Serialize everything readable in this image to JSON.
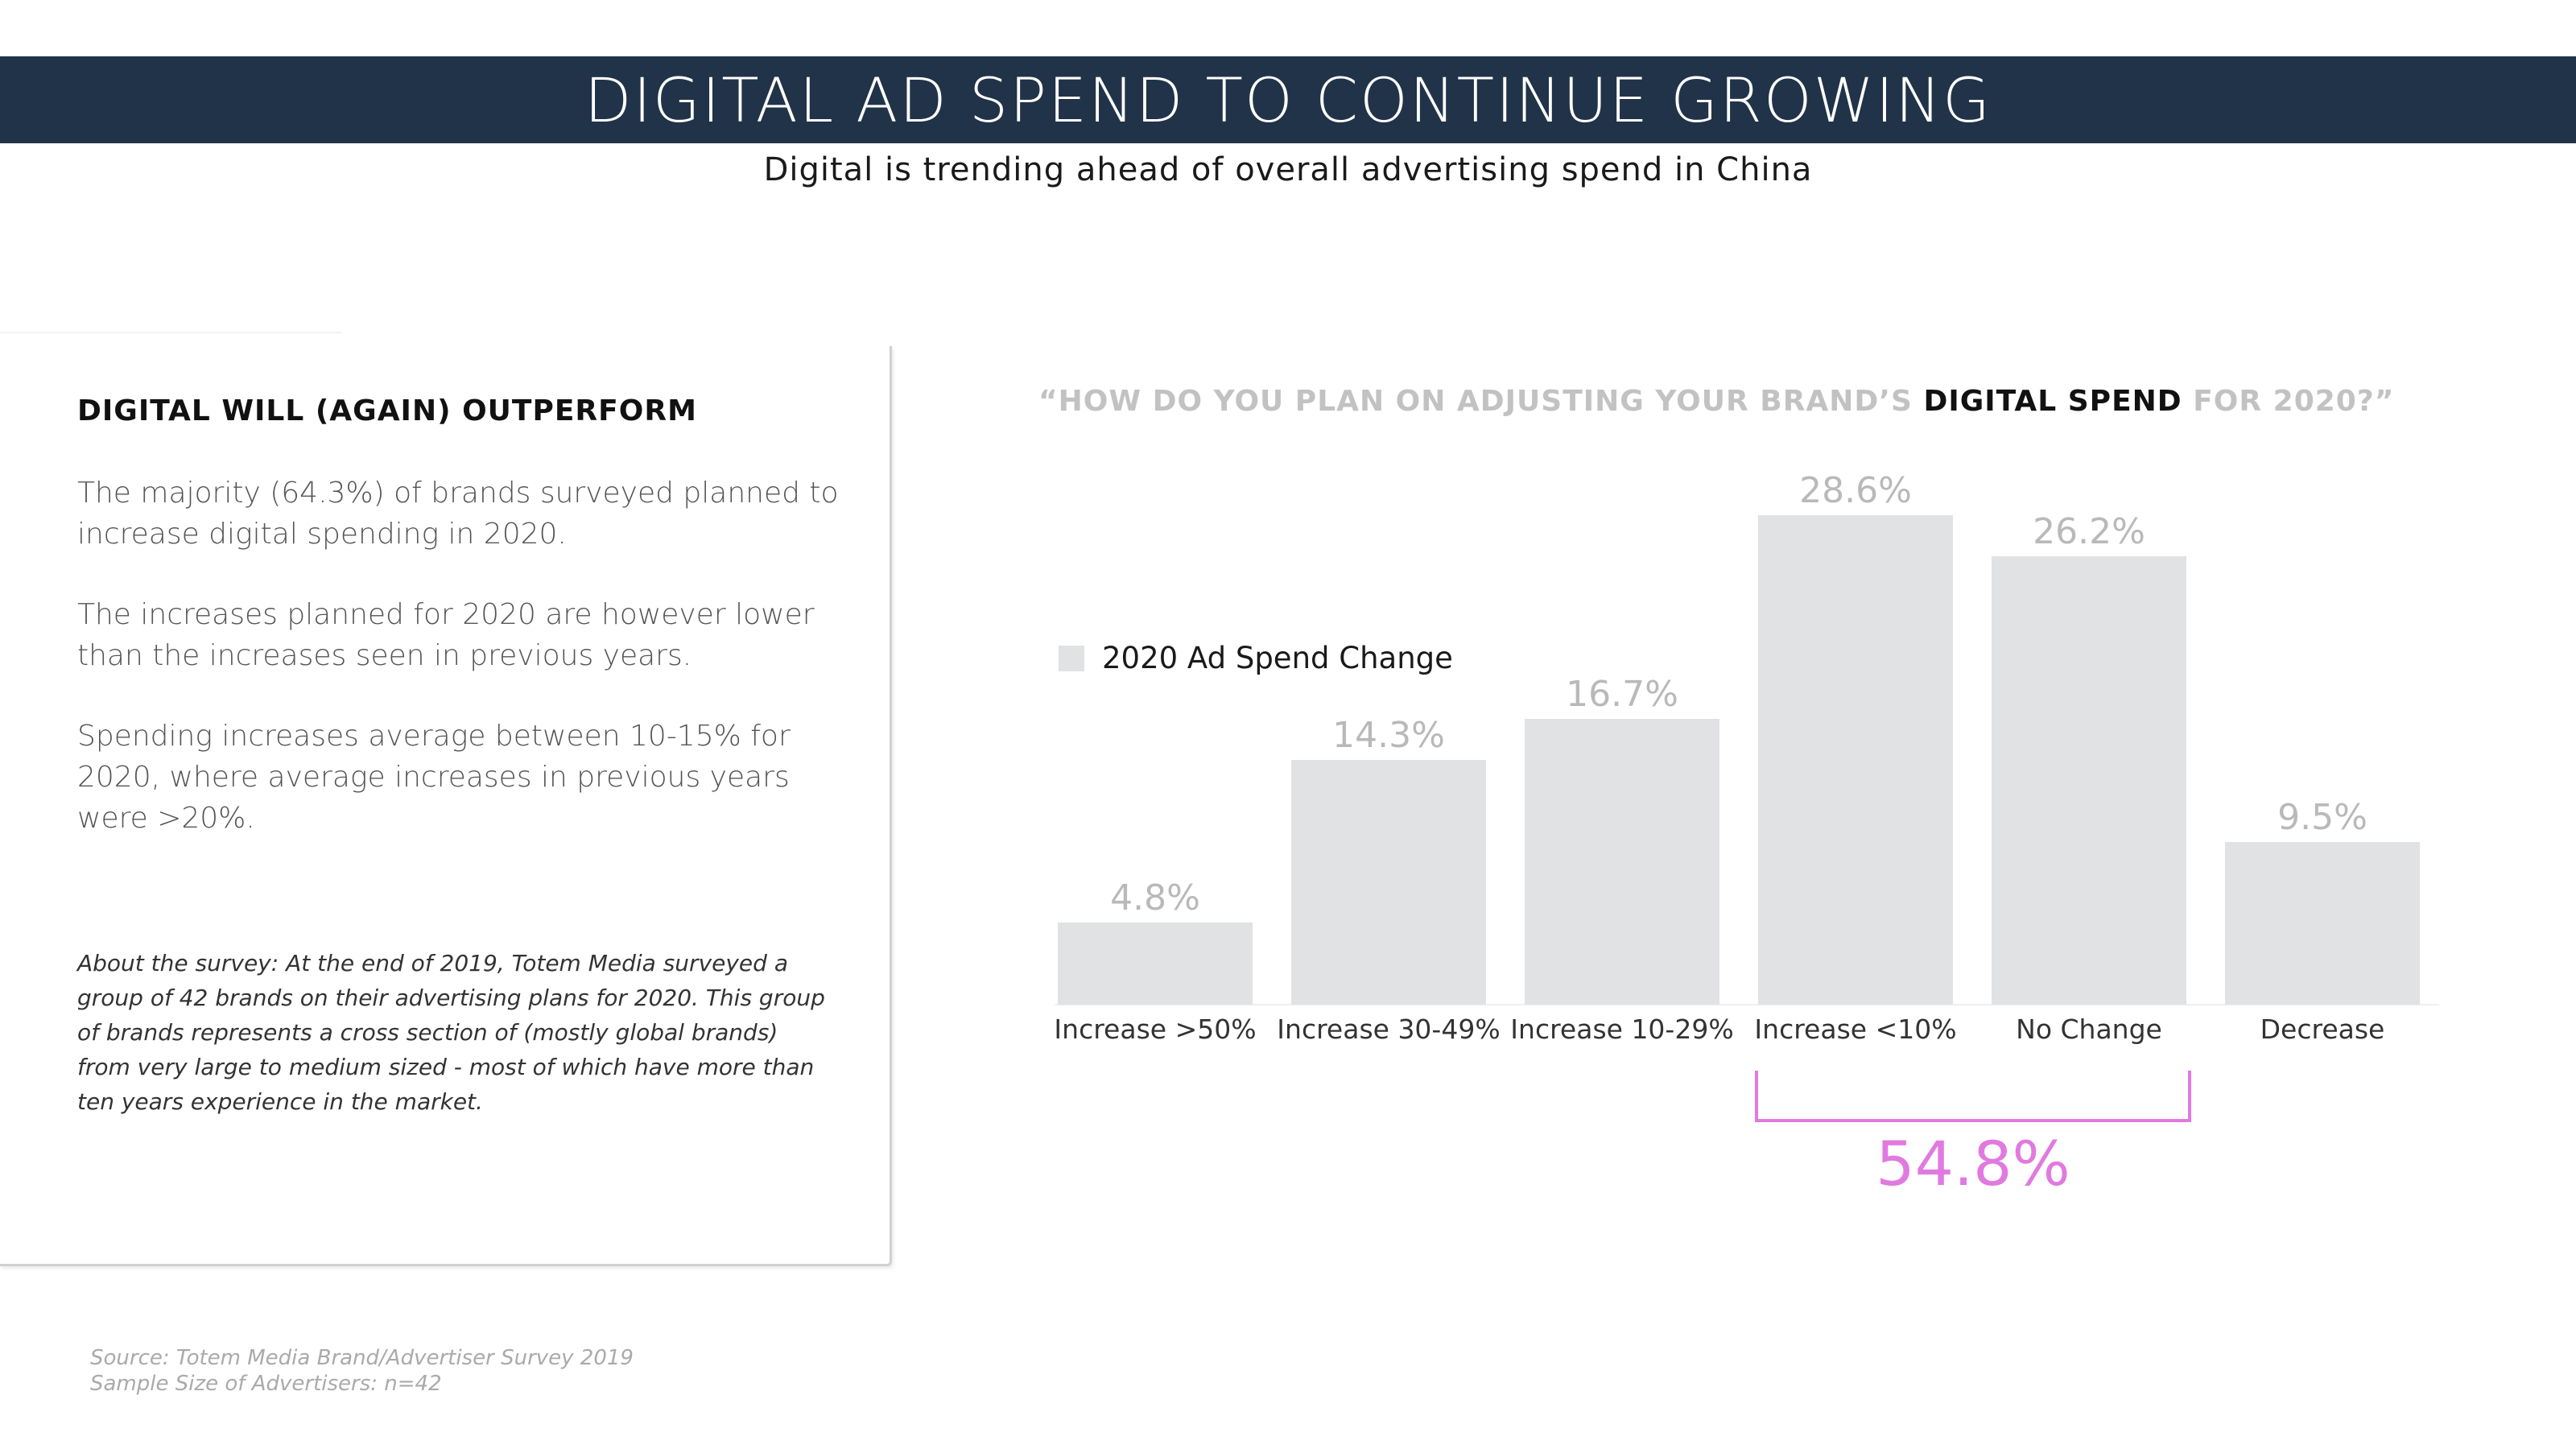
{
  "header": {
    "title": "DIGITAL AD SPEND TO CONTINUE GROWING",
    "subtitle": "Digital is trending ahead of overall advertising spend in China"
  },
  "left_panel": {
    "heading": "DIGITAL WILL (AGAIN) OUTPERFORM",
    "paragraphs": [
      "The majority (64.3%) of brands surveyed planned to increase digital spending in 2020.",
      "The increases planned for 2020 are however lower than the increases seen in previous years.",
      "Spending increases average between 10-15% for 2020, where average increases in previous years were >20%."
    ],
    "about_label": "About the survey:",
    "about_text": " At the end of 2019, Totem Media surveyed a group of 42 brands on their advertising plans for 2020. This group of brands represents a cross section of (mostly global brands) from very large to medium sized - most of which have more than ten years experience in the market."
  },
  "footer": {
    "source": "Source: Totem Media Brand/Advertiser Survey 2019",
    "sample": "Sample Size of Advertisers: n=42"
  },
  "chart_data": {
    "type": "bar",
    "title_prefix": "“HOW DO YOU PLAN ON ADJUSTING YOUR BRAND’S ",
    "title_highlight": "DIGITAL SPEND",
    "title_suffix": " FOR 2020?”",
    "categories": [
      "Increase >50%",
      "Increase 30-49%",
      "Increase 10-29%",
      "Increase <10%",
      "No Change",
      "Decrease"
    ],
    "series": [
      {
        "name": "2020 Ad Spend Change",
        "values": [
          4.8,
          14.3,
          16.7,
          28.6,
          26.2,
          9.5
        ]
      }
    ],
    "value_labels": [
      "4.8%",
      "14.3%",
      "16.7%",
      "28.6%",
      "26.2%",
      "9.5%"
    ],
    "ylim": [
      0,
      28.6
    ],
    "legend_position": "left-middle",
    "grid": false,
    "bar_color": "#e1e2e3",
    "value_label_color": "#b9b9b9",
    "bracket": {
      "from_category": "Increase <10%",
      "to_category": "No Change",
      "label": "54.8%",
      "color": "#e07ae0"
    }
  }
}
